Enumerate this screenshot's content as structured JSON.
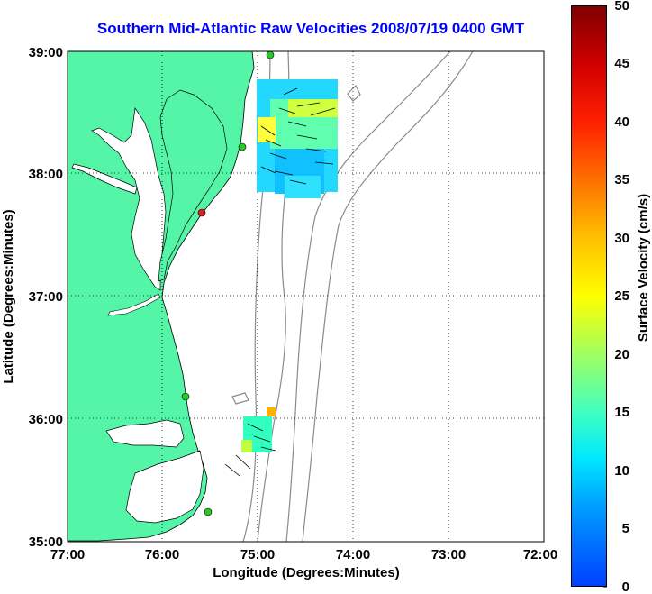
{
  "title": "Southern Mid-Atlantic Raw Velocities 2008/07/19 0400 GMT",
  "axes": {
    "xlabel": "Longitude (Degrees:Minutes)",
    "ylabel": "Latitude (Degrees:Minutes)",
    "x_ticks": [
      "77:00",
      "76:00",
      "75:00",
      "74:00",
      "73:00",
      "72:00"
    ],
    "y_ticks": [
      "39:00",
      "38:00",
      "37:00",
      "36:00",
      "35:00"
    ]
  },
  "colorbar": {
    "label": "Surface Velocity (cm/s)",
    "ticks": [
      "50",
      "45",
      "40",
      "35",
      "30",
      "25",
      "20",
      "15",
      "10",
      "5",
      "0"
    ],
    "range": [
      0,
      50
    ]
  },
  "colors": {
    "land": "#55f5a8",
    "water": "#ffffff",
    "title": "#0000ff",
    "bathymetry": "#8a8a8a",
    "station": "#22cc22",
    "station_alert": "#dd2222"
  },
  "legend_values": {
    "velocity_north_box_cms": 12,
    "velocity_south_box_cms": 15
  }
}
